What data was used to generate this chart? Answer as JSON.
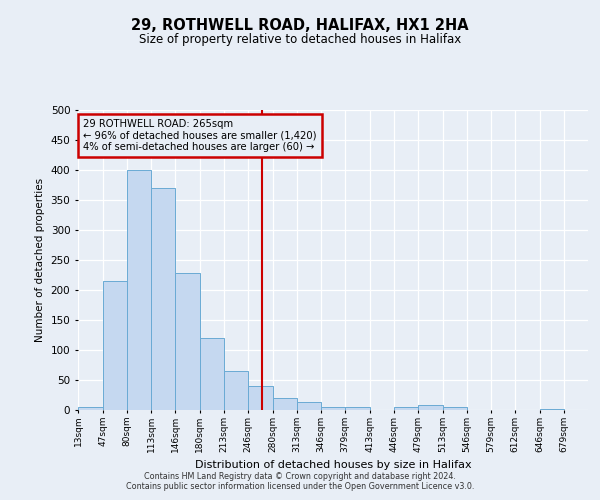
{
  "title": "29, ROTHWELL ROAD, HALIFAX, HX1 2HA",
  "subtitle": "Size of property relative to detached houses in Halifax",
  "xlabel": "Distribution of detached houses by size in Halifax",
  "ylabel": "Number of detached properties",
  "bar_color": "#c5d8f0",
  "bar_edge_color": "#6aaad4",
  "bg_color": "#e8eef6",
  "grid_color": "#ffffff",
  "bins": [
    13,
    47,
    80,
    113,
    146,
    180,
    213,
    246,
    280,
    313,
    346,
    379,
    413,
    446,
    479,
    513,
    546,
    579,
    612,
    646,
    679,
    712
  ],
  "bin_labels": [
    "13sqm",
    "47sqm",
    "80sqm",
    "113sqm",
    "146sqm",
    "180sqm",
    "213sqm",
    "246sqm",
    "280sqm",
    "313sqm",
    "346sqm",
    "379sqm",
    "413sqm",
    "446sqm",
    "479sqm",
    "513sqm",
    "546sqm",
    "579sqm",
    "612sqm",
    "646sqm",
    "679sqm"
  ],
  "values": [
    5,
    215,
    400,
    370,
    228,
    120,
    65,
    40,
    20,
    14,
    5,
    5,
    0,
    5,
    8,
    5,
    0,
    0,
    0,
    2,
    0
  ],
  "vline_x": 265,
  "vline_color": "#cc0000",
  "annotation_title": "29 ROTHWELL ROAD: 265sqm",
  "annotation_line1": "← 96% of detached houses are smaller (1,420)",
  "annotation_line2": "4% of semi-detached houses are larger (60) →",
  "annotation_box_edgecolor": "#cc0000",
  "ylim": [
    0,
    500
  ],
  "yticks": [
    0,
    50,
    100,
    150,
    200,
    250,
    300,
    350,
    400,
    450,
    500
  ],
  "footnote1": "Contains HM Land Registry data © Crown copyright and database right 2024.",
  "footnote2": "Contains public sector information licensed under the Open Government Licence v3.0."
}
